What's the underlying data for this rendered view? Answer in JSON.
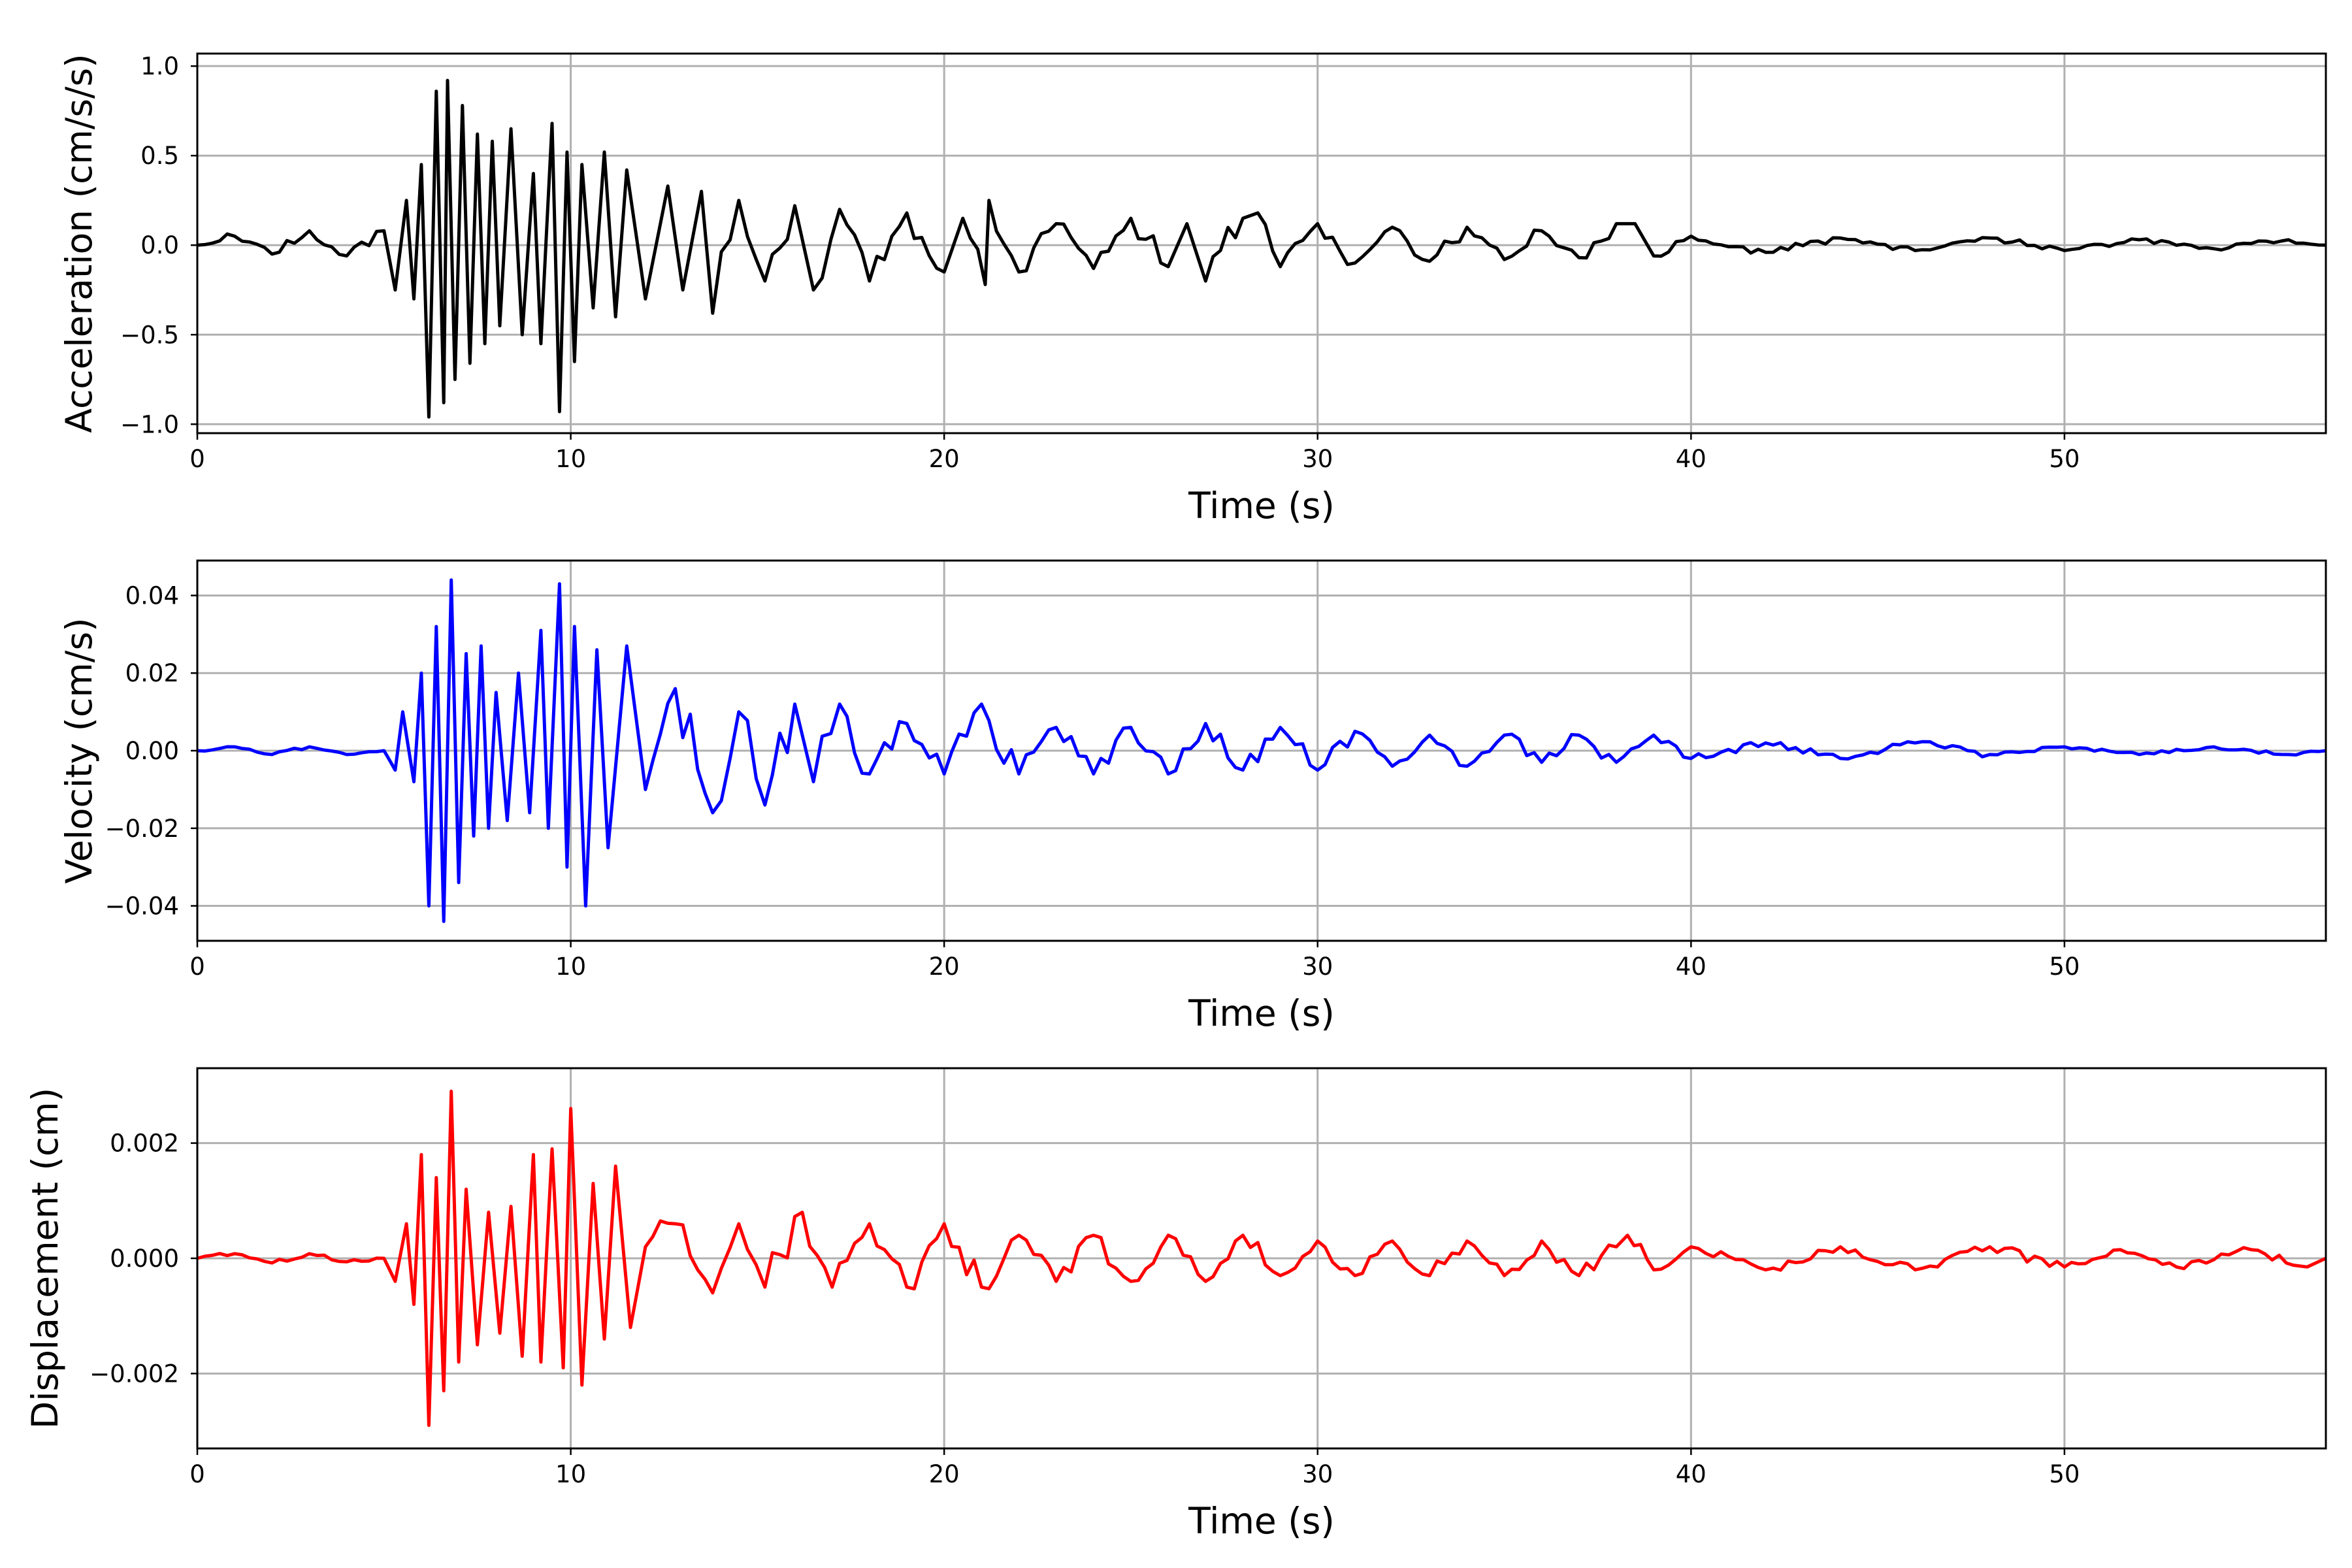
{
  "chart_data": [
    {
      "type": "line",
      "title": "",
      "xlabel": "Time (s)",
      "ylabel": "Acceleration (cm/s/s)",
      "xlim": [
        0,
        57
      ],
      "ylim": [
        -1.05,
        1.07
      ],
      "xticks": [
        0,
        10,
        20,
        30,
        40,
        50
      ],
      "xtick_labels": [
        "0",
        "10",
        "20",
        "30",
        "40",
        "50"
      ],
      "yticks": [
        -1.0,
        -0.5,
        0.0,
        0.5,
        1.0
      ],
      "ytick_labels": [
        "−1.0",
        "−0.5",
        "0.0",
        "0.5",
        "1.0"
      ],
      "grid": true,
      "series": [
        {
          "color": "#000000",
          "x": [
            0,
            1,
            2,
            3,
            4,
            5,
            5.3,
            5.6,
            5.8,
            6.0,
            6.2,
            6.4,
            6.6,
            6.7,
            6.9,
            7.1,
            7.3,
            7.5,
            7.7,
            7.9,
            8.1,
            8.4,
            8.7,
            9.0,
            9.2,
            9.5,
            9.7,
            9.9,
            10.1,
            10.3,
            10.6,
            10.9,
            11.2,
            11.5,
            12.0,
            12.6,
            13.0,
            13.5,
            13.8,
            14.5,
            15.2,
            16.0,
            16.5,
            17.2,
            18.0,
            19.0,
            20.0,
            20.5,
            21.1,
            21.2,
            22.0,
            23.0,
            24.0,
            25.0,
            26.0,
            26.5,
            27.0,
            28.0,
            28.4,
            29.0,
            30.0,
            31.0,
            32.0,
            33.0,
            34.0,
            35.0,
            36.0,
            37.0,
            38.0,
            38.5,
            39.0,
            40.0,
            42.0,
            44.0,
            46.0,
            48.0,
            50.0,
            52.0,
            54.0,
            56.0,
            57.0
          ],
          "y": [
            0.0,
            0.05,
            -0.05,
            0.08,
            -0.06,
            0.08,
            -0.25,
            0.25,
            -0.3,
            0.45,
            -0.96,
            0.86,
            -0.88,
            0.92,
            -0.75,
            0.78,
            -0.66,
            0.62,
            -0.55,
            0.58,
            -0.45,
            0.65,
            -0.5,
            0.4,
            -0.55,
            0.68,
            -0.93,
            0.52,
            -0.65,
            0.45,
            -0.35,
            0.52,
            -0.4,
            0.42,
            -0.3,
            0.33,
            -0.25,
            0.3,
            -0.38,
            0.25,
            -0.2,
            0.22,
            -0.25,
            0.2,
            -0.2,
            0.18,
            -0.15,
            0.15,
            -0.22,
            0.25,
            -0.15,
            0.12,
            -0.13,
            0.15,
            -0.12,
            0.12,
            -0.2,
            0.15,
            0.18,
            -0.12,
            0.12,
            -0.1,
            0.1,
            -0.09,
            0.1,
            -0.08,
            0.08,
            -0.07,
            0.12,
            0.12,
            -0.06,
            0.05,
            -0.04,
            0.04,
            -0.03,
            0.04,
            -0.03,
            0.03,
            -0.02,
            0.03,
            0.0
          ]
        }
      ]
    },
    {
      "type": "line",
      "title": "",
      "xlabel": "Time (s)",
      "ylabel": "Velocity (cm/s)",
      "xlim": [
        0,
        57
      ],
      "ylim": [
        -0.049,
        0.049
      ],
      "xticks": [
        0,
        10,
        20,
        30,
        40,
        50
      ],
      "xtick_labels": [
        "0",
        "10",
        "20",
        "30",
        "40",
        "50"
      ],
      "yticks": [
        -0.04,
        -0.02,
        0.0,
        0.02,
        0.04
      ],
      "ytick_labels": [
        "−0.04",
        "−0.02",
        "0.00",
        "0.02",
        "0.04"
      ],
      "grid": true,
      "series": [
        {
          "color": "#0000ff",
          "x": [
            0,
            1,
            2,
            3,
            4,
            5,
            5.3,
            5.5,
            5.8,
            6.0,
            6.2,
            6.4,
            6.6,
            6.8,
            7.0,
            7.2,
            7.4,
            7.6,
            7.8,
            8.0,
            8.3,
            8.6,
            8.9,
            9.2,
            9.4,
            9.7,
            9.9,
            10.1,
            10.4,
            10.7,
            11.0,
            11.5,
            12.0,
            12.8,
            13.8,
            14.5,
            15.2,
            16.0,
            16.5,
            17.2,
            18.0,
            19.0,
            20.0,
            21.0,
            22.0,
            23.0,
            24.0,
            25.0,
            26.0,
            27.0,
            28.0,
            29.0,
            30.0,
            31.0,
            32.0,
            33.0,
            34.0,
            35.0,
            36.0,
            37.0,
            38.0,
            39.0,
            40.0,
            42.0,
            44.0,
            46.0,
            48.0,
            50.0,
            52.0,
            54.0,
            56.0,
            57.0
          ],
          "y": [
            0.0,
            0.001,
            -0.001,
            0.001,
            -0.001,
            0.0,
            -0.005,
            0.01,
            -0.008,
            0.02,
            -0.04,
            0.032,
            -0.044,
            0.044,
            -0.034,
            0.025,
            -0.022,
            0.027,
            -0.02,
            0.015,
            -0.018,
            0.02,
            -0.016,
            0.031,
            -0.02,
            0.043,
            -0.03,
            0.032,
            -0.04,
            0.026,
            -0.025,
            0.027,
            -0.01,
            0.016,
            -0.016,
            0.01,
            -0.014,
            0.012,
            -0.008,
            0.012,
            -0.006,
            0.007,
            -0.006,
            0.012,
            -0.006,
            0.006,
            -0.006,
            0.006,
            -0.006,
            0.007,
            -0.005,
            0.006,
            -0.005,
            0.005,
            -0.004,
            0.004,
            -0.004,
            0.004,
            -0.003,
            0.004,
            -0.003,
            0.004,
            -0.002,
            0.002,
            -0.002,
            0.002,
            -0.001,
            0.001,
            -0.001,
            0.001,
            -0.001,
            0.0
          ]
        }
      ]
    },
    {
      "type": "line",
      "title": "",
      "xlabel": "Time (s)",
      "ylabel": "Displacement (cm)",
      "xlim": [
        0,
        57
      ],
      "ylim": [
        -0.0033,
        0.0033
      ],
      "xticks": [
        0,
        10,
        20,
        30,
        40,
        50
      ],
      "xtick_labels": [
        "0",
        "10",
        "20",
        "30",
        "40",
        "50"
      ],
      "yticks": [
        -0.002,
        0.0,
        0.002
      ],
      "ytick_labels": [
        "−0.002",
        "0.000",
        "0.002"
      ],
      "grid": true,
      "series": [
        {
          "color": "#ff0000",
          "x": [
            0,
            1,
            2,
            3,
            4,
            5,
            5.3,
            5.6,
            5.8,
            6.0,
            6.2,
            6.4,
            6.6,
            6.8,
            7.0,
            7.2,
            7.5,
            7.8,
            8.1,
            8.4,
            8.7,
            9.0,
            9.2,
            9.5,
            9.8,
            10.0,
            10.3,
            10.6,
            10.9,
            11.2,
            11.6,
            12.0,
            12.8,
            13.8,
            14.5,
            15.2,
            16.2,
            17.0,
            18.0,
            19.0,
            20.0,
            21.0,
            22.0,
            23.0,
            24.0,
            25.0,
            26.0,
            27.0,
            28.0,
            29.0,
            30.0,
            31.0,
            32.0,
            33.0,
            34.0,
            35.0,
            36.0,
            37.0,
            38.0,
            38.3,
            39.0,
            40.0,
            42.0,
            44.0,
            46.0,
            48.0,
            50.0,
            51.5,
            53.0,
            55.0,
            56.5,
            57.0
          ],
          "y": [
            0.0,
            8e-05,
            -8e-05,
            8e-05,
            -6e-05,
            0.0,
            -0.0004,
            0.0006,
            -0.0008,
            0.0018,
            -0.0029,
            0.0014,
            -0.0023,
            0.0029,
            -0.0018,
            0.0012,
            -0.0015,
            0.0008,
            -0.0013,
            0.0009,
            -0.0017,
            0.0018,
            -0.0018,
            0.0019,
            -0.0019,
            0.0026,
            -0.0022,
            0.0013,
            -0.0014,
            0.0016,
            -0.0012,
            0.0002,
            0.0006,
            -0.0006,
            0.0006,
            -0.0005,
            0.0008,
            -0.0005,
            0.0006,
            -0.0005,
            0.0006,
            -0.0005,
            0.0004,
            -0.0004,
            0.0004,
            -0.0004,
            0.0004,
            -0.0004,
            0.0004,
            -0.0003,
            0.0003,
            -0.0003,
            0.0003,
            -0.0003,
            0.0003,
            -0.0003,
            0.0003,
            -0.0003,
            0.0002,
            0.0004,
            -0.0002,
            0.0002,
            -0.0002,
            0.0002,
            -0.0002,
            0.0002,
            -0.00015,
            0.00015,
            -0.00015,
            0.00015,
            -0.00015,
            0.0
          ]
        }
      ]
    }
  ]
}
